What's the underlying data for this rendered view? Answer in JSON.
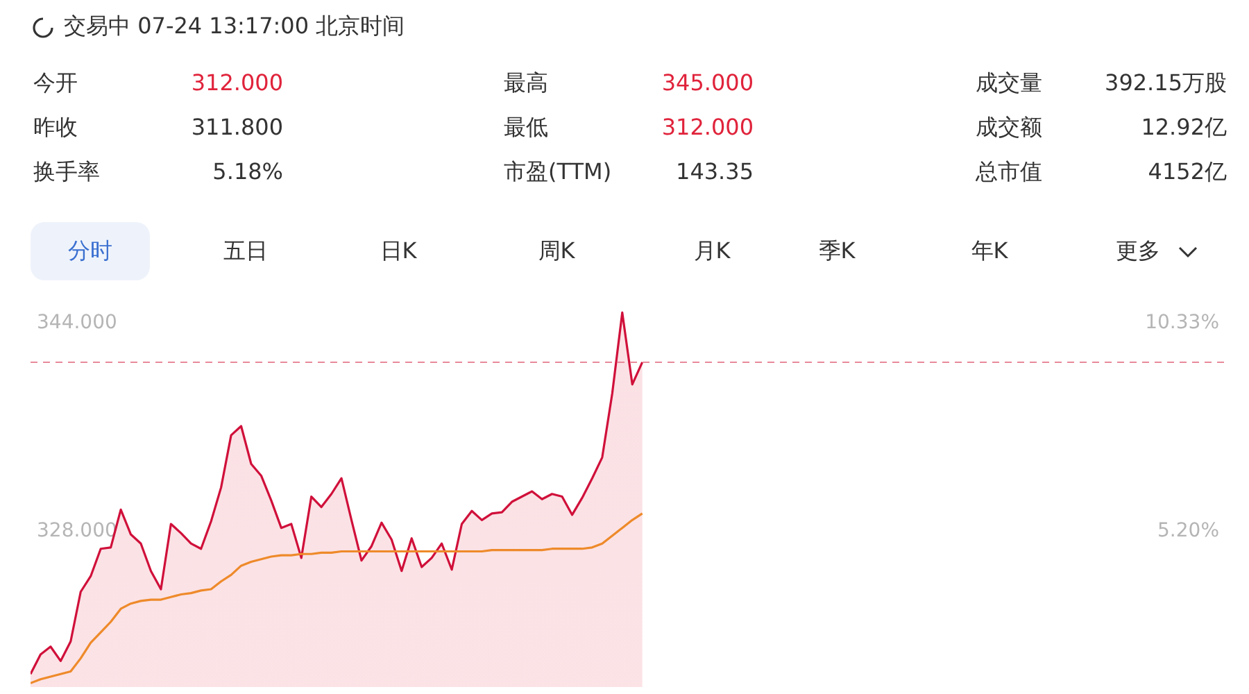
{
  "chart_data": {
    "type": "area",
    "title": "交易中 07-24 13:17:00 北京时间",
    "annotations": [
      "今开",
      "312.000",
      "最高",
      "345.000",
      "成交量",
      "392.15万股",
      "昨收",
      "311.800",
      "最低",
      "312.000",
      "成交额",
      "12.92亿",
      "换手率",
      "5.18%",
      "市盈(TTM)",
      "143.35",
      "总市值",
      "4152亿",
      "分时",
      "五日",
      "日K",
      "周K",
      "月K",
      "季K",
      "年K",
      "更多"
    ],
    "categories": [
      null,
      null,
      null,
      null,
      null,
      null,
      null,
      null,
      null,
      null,
      null,
      null,
      null,
      null,
      null,
      null,
      null,
      null,
      null,
      null,
      null,
      null,
      null,
      null,
      null,
      null,
      null,
      null,
      null,
      null,
      null,
      null,
      null,
      null,
      null,
      null,
      null,
      null,
      null,
      null,
      null,
      null,
      null,
      null,
      null,
      null,
      null,
      null,
      null,
      null,
      null,
      null,
      null,
      null,
      null,
      null,
      null,
      null,
      null,
      null,
      null,
      null,
      null,
      null,
      null,
      null,
      null,
      null,
      null,
      null,
      null,
      null,
      null,
      null,
      null,
      null,
      null,
      null,
      null,
      null,
      null,
      null,
      null,
      null,
      null,
      null,
      null,
      null,
      null,
      null,
      null,
      null,
      null,
      null,
      null,
      null,
      null,
      null,
      null,
      null,
      null,
      null,
      null,
      null,
      null,
      null,
      null,
      null,
      null,
      null,
      null,
      null,
      null,
      null,
      null,
      null,
      null,
      null,
      null,
      null
    ],
    "series": [
      {
        "type": "area",
        "color": "#d0103a",
        "values": [
          317.0,
          318.5,
          319.1,
          318.0,
          319.5,
          323.3,
          324.5,
          326.6,
          326.7,
          329.6,
          327.7,
          327.0,
          324.9,
          323.5,
          328.5,
          327.8,
          327.0,
          326.6,
          328.7,
          331.3,
          335.3,
          336.0,
          333.1,
          332.2,
          330.3,
          328.2,
          328.5,
          325.9,
          330.6,
          329.8,
          330.8,
          332.0,
          328.8,
          325.7,
          326.8,
          328.6,
          327.3,
          324.9,
          327.4,
          325.2,
          325.9,
          327.0,
          325.0,
          328.5,
          329.5,
          328.8,
          329.3,
          329.4,
          330.2,
          330.6,
          331.0,
          330.4,
          330.8,
          330.6,
          329.2,
          330.5,
          332.0,
          333.6,
          338.5,
          344.7,
          339.2,
          340.9,
          null,
          null,
          null,
          null,
          null,
          null,
          null,
          null,
          null,
          null,
          null,
          null,
          null,
          null,
          null,
          null,
          null,
          null,
          null,
          null,
          null,
          null,
          null,
          null,
          null,
          null,
          null,
          null,
          null,
          null,
          null,
          null,
          null,
          null,
          null,
          null,
          null,
          null,
          null,
          null,
          null,
          null,
          null,
          null,
          null,
          null,
          null,
          null,
          null,
          null,
          null,
          null,
          null,
          null,
          null,
          null,
          null,
          null
        ]
      },
      {
        "type": "line",
        "color": "#ee8a2a",
        "values": [
          316.3,
          316.6,
          316.8,
          317.0,
          317.2,
          318.2,
          319.4,
          320.2,
          321.0,
          322.0,
          322.4,
          322.6,
          322.7,
          322.7,
          322.9,
          323.1,
          323.2,
          323.4,
          323.5,
          324.1,
          324.6,
          325.3,
          325.6,
          325.8,
          326.0,
          326.1,
          326.1,
          326.2,
          326.2,
          326.3,
          326.3,
          326.4,
          326.4,
          326.4,
          326.4,
          326.4,
          326.4,
          326.4,
          326.4,
          326.4,
          326.4,
          326.4,
          326.4,
          326.4,
          326.4,
          326.4,
          326.5,
          326.5,
          326.5,
          326.5,
          326.5,
          326.5,
          326.6,
          326.6,
          326.6,
          326.6,
          326.7,
          327.0,
          327.6,
          328.2,
          328.8,
          329.3,
          null,
          null,
          null,
          null,
          null,
          null,
          null,
          null,
          null,
          null,
          null,
          null,
          null,
          null,
          null,
          null,
          null,
          null,
          null,
          null,
          null,
          null,
          null,
          null,
          null,
          null,
          null,
          null,
          null,
          null,
          null,
          null,
          null,
          null,
          null,
          null,
          null,
          null,
          null,
          null,
          null,
          null,
          null,
          null,
          null,
          null,
          null,
          null,
          null,
          null,
          null,
          null,
          null,
          null,
          null,
          null,
          null,
          null
        ]
      }
    ],
    "ylim": [
      316.0,
      346.0
    ],
    "yticks": [
      {
        "value": 344,
        "label": "344.000"
      },
      {
        "value": 328,
        "label": "328.000"
      }
    ],
    "y2lim": [
      1.35,
      10.97
    ],
    "y2ticks": [
      {
        "value": 10.33,
        "label": "10.33%"
      },
      {
        "value": 5.2,
        "label": "5.20%"
      }
    ],
    "ref_lines": [
      {
        "axis": "y",
        "value": 340.9,
        "color": "#e88a9a",
        "line_style": "dashed"
      }
    ]
  }
}
